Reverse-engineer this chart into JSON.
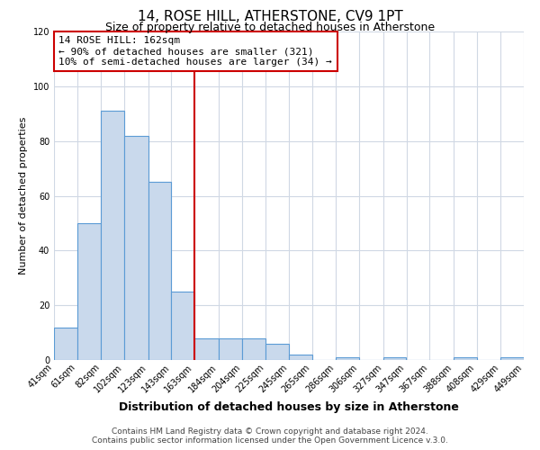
{
  "title": "14, ROSE HILL, ATHERSTONE, CV9 1PT",
  "subtitle": "Size of property relative to detached houses in Atherstone",
  "xlabel": "Distribution of detached houses by size in Atherstone",
  "ylabel": "Number of detached properties",
  "bin_edges": [
    41,
    61,
    82,
    102,
    123,
    143,
    163,
    184,
    204,
    225,
    245,
    265,
    286,
    306,
    327,
    347,
    367,
    388,
    408,
    429,
    449
  ],
  "counts": [
    12,
    50,
    91,
    82,
    65,
    25,
    8,
    8,
    8,
    6,
    2,
    0,
    1,
    0,
    1,
    0,
    0,
    1,
    0,
    1
  ],
  "bar_facecolor": "#c9d9ec",
  "bar_edgecolor": "#5b9bd5",
  "vline_x": 163,
  "vline_color": "#cc0000",
  "annotation_line1": "14 ROSE HILL: 162sqm",
  "annotation_line2": "← 90% of detached houses are smaller (321)",
  "annotation_line3": "10% of semi-detached houses are larger (34) →",
  "annotation_box_edgecolor": "#cc0000",
  "grid_color": "#d0d8e4",
  "background_color": "#ffffff",
  "footer_line1": "Contains HM Land Registry data © Crown copyright and database right 2024.",
  "footer_line2": "Contains public sector information licensed under the Open Government Licence v.3.0.",
  "ylim": [
    0,
    120
  ],
  "yticks": [
    0,
    20,
    40,
    60,
    80,
    100,
    120
  ],
  "tick_labels": [
    "41sqm",
    "61sqm",
    "82sqm",
    "102sqm",
    "123sqm",
    "143sqm",
    "163sqm",
    "184sqm",
    "204sqm",
    "225sqm",
    "245sqm",
    "265sqm",
    "286sqm",
    "306sqm",
    "327sqm",
    "347sqm",
    "367sqm",
    "388sqm",
    "408sqm",
    "429sqm",
    "449sqm"
  ],
  "title_fontsize": 11,
  "subtitle_fontsize": 9,
  "xlabel_fontsize": 9,
  "ylabel_fontsize": 8,
  "tick_fontsize": 7,
  "annotation_fontsize": 8,
  "footer_fontsize": 6.5
}
